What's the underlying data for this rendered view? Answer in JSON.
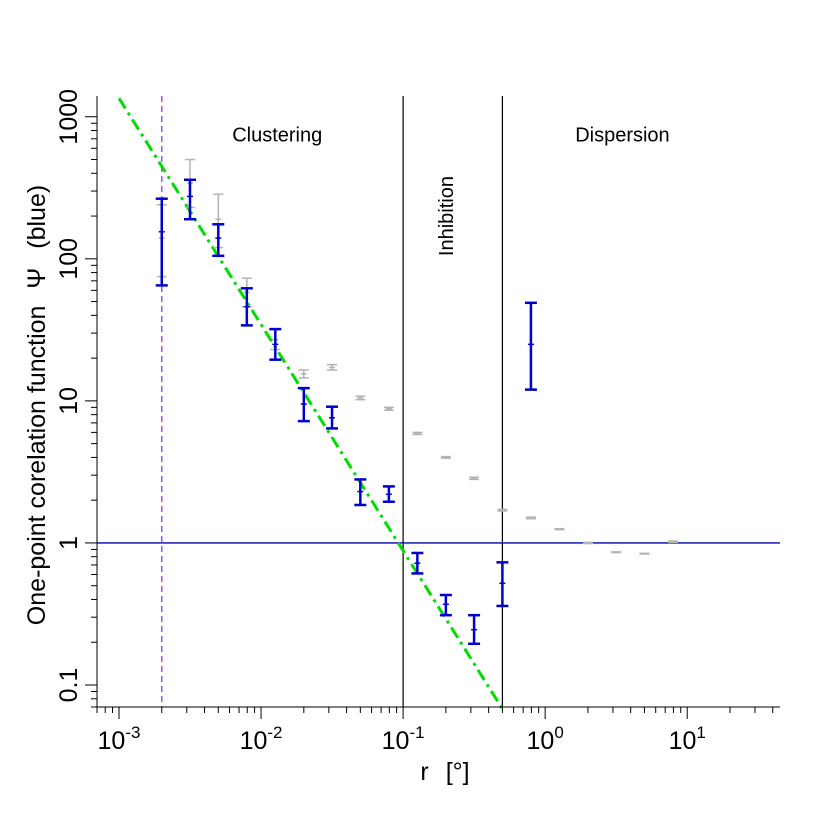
{
  "chart_data": {
    "type": "scatter",
    "title": "",
    "xlabel_main": "r",
    "xlabel_unit": "[°]",
    "ylabel_main": "One-point corelation function",
    "ylabel_symbol": "Ψ",
    "ylabel_note": "(blue)",
    "x_log": true,
    "y_log": true,
    "xlim": [
      0.0007,
      45
    ],
    "ylim": [
      0.07,
      1400
    ],
    "x_ticks": [
      {
        "value": 0.001,
        "base": "10",
        "exp": "-3"
      },
      {
        "value": 0.01,
        "base": "10",
        "exp": "-2"
      },
      {
        "value": 0.1,
        "base": "10",
        "exp": "-1"
      },
      {
        "value": 1,
        "base": "10",
        "exp": "0"
      },
      {
        "value": 10,
        "base": "10",
        "exp": "1"
      }
    ],
    "y_ticks": [
      {
        "value": 0.1,
        "label": "0.1"
      },
      {
        "value": 1,
        "label": "1"
      },
      {
        "value": 10,
        "label": "10"
      },
      {
        "value": 100,
        "label": "100"
      },
      {
        "value": 1000,
        "label": "1000"
      }
    ],
    "regions": [
      {
        "label": "Clustering",
        "x": 0.013,
        "y": 750,
        "rotated": false
      },
      {
        "label": "Inhibition",
        "x": 0.2,
        "y": 200,
        "rotated": true
      },
      {
        "label": "Dispersion",
        "x": 3.5,
        "y": 750,
        "rotated": false
      }
    ],
    "vlines": [
      {
        "x": 0.1,
        "color": "#000000",
        "style": "solid"
      },
      {
        "x": 0.5,
        "color": "#000000",
        "style": "solid"
      },
      {
        "x": 0.002,
        "color": "#a64dff",
        "style": "dashed"
      }
    ],
    "hline": {
      "y": 1,
      "color": "#0000aa"
    },
    "fit_line": {
      "x": [
        0.001,
        0.5
      ],
      "y": [
        1350,
        0.068
      ],
      "color": "#00dd00",
      "style": "dotdash"
    },
    "series": [
      {
        "color": "#0000cc",
        "points": [
          {
            "x": 0.002,
            "y": 155,
            "lo": 65,
            "hi": 265
          },
          {
            "x": 0.00316,
            "y": 275,
            "lo": 190,
            "hi": 360
          },
          {
            "x": 0.005,
            "y": 140,
            "lo": 105,
            "hi": 175
          },
          {
            "x": 0.00794,
            "y": 46,
            "lo": 34,
            "hi": 62
          },
          {
            "x": 0.0126,
            "y": 25,
            "lo": 19.5,
            "hi": 32
          },
          {
            "x": 0.02,
            "y": 9.5,
            "lo": 7.2,
            "hi": 12.3
          },
          {
            "x": 0.0316,
            "y": 7.6,
            "lo": 6.4,
            "hi": 9.1
          },
          {
            "x": 0.05,
            "y": 2.3,
            "lo": 1.85,
            "hi": 2.8
          },
          {
            "x": 0.0794,
            "y": 2.2,
            "lo": 1.95,
            "hi": 2.5
          },
          {
            "x": 0.126,
            "y": 0.72,
            "lo": 0.61,
            "hi": 0.85
          },
          {
            "x": 0.2,
            "y": 0.37,
            "lo": 0.31,
            "hi": 0.43
          },
          {
            "x": 0.316,
            "y": 0.245,
            "lo": 0.195,
            "hi": 0.31
          },
          {
            "x": 0.5,
            "y": 0.52,
            "lo": 0.36,
            "hi": 0.73
          },
          {
            "x": 0.794,
            "y": 25,
            "lo": 12,
            "hi": 49
          }
        ]
      },
      {
        "color": "#b3b3b3",
        "points": [
          {
            "x": 0.002,
            "y": 140,
            "lo": 75,
            "hi": 240
          },
          {
            "x": 0.00316,
            "y": 340,
            "lo": 230,
            "hi": 500
          },
          {
            "x": 0.005,
            "y": 190,
            "lo": 120,
            "hi": 285
          },
          {
            "x": 0.00794,
            "y": 58,
            "lo": 46,
            "hi": 73
          },
          {
            "x": 0.0126,
            "y": 27,
            "lo": 23,
            "hi": 32
          },
          {
            "x": 0.02,
            "y": 15.5,
            "lo": 14.5,
            "hi": 16.5
          },
          {
            "x": 0.0316,
            "y": 17.2,
            "lo": 16.5,
            "hi": 18
          },
          {
            "x": 0.05,
            "y": 10.5,
            "lo": 10.2,
            "hi": 10.8
          },
          {
            "x": 0.0794,
            "y": 8.8,
            "lo": 8.6,
            "hi": 9.0
          },
          {
            "x": 0.126,
            "y": 5.9,
            "lo": 5.8,
            "hi": 6.0
          },
          {
            "x": 0.2,
            "y": 4.0,
            "lo": 3.95,
            "hi": 4.05
          },
          {
            "x": 0.316,
            "y": 2.85,
            "lo": 2.8,
            "hi": 2.9
          },
          {
            "x": 0.5,
            "y": 1.7,
            "lo": 1.68,
            "hi": 1.72
          },
          {
            "x": 0.794,
            "y": 1.5,
            "lo": 1.48,
            "hi": 1.52
          },
          {
            "x": 1.26,
            "y": 1.25,
            "lo": 1.24,
            "hi": 1.26
          },
          {
            "x": 2.0,
            "y": 1.0,
            "lo": 0.99,
            "hi": 1.01
          },
          {
            "x": 3.16,
            "y": 0.86,
            "lo": 0.855,
            "hi": 0.865
          },
          {
            "x": 5.0,
            "y": 0.84,
            "lo": 0.835,
            "hi": 0.845
          },
          {
            "x": 7.94,
            "y": 1.02,
            "lo": 1.01,
            "hi": 1.03
          }
        ]
      }
    ]
  }
}
